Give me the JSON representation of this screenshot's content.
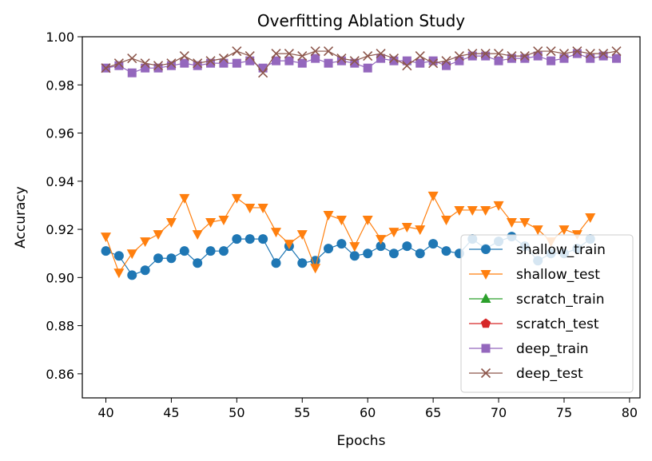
{
  "chart_data": {
    "type": "line",
    "title": "Overfitting Ablation Study",
    "xlabel": "Epochs",
    "ylabel": "Accuracy",
    "xlim": [
      38.2,
      80.8
    ],
    "ylim": [
      0.85,
      1.0
    ],
    "xticks": [
      40,
      45,
      50,
      55,
      60,
      65,
      70,
      75,
      80
    ],
    "yticks": [
      0.86,
      0.88,
      0.9,
      0.92,
      0.94,
      0.96,
      0.98,
      1.0
    ],
    "xtick_labels": [
      "40",
      "45",
      "50",
      "55",
      "60",
      "65",
      "70",
      "75",
      "80"
    ],
    "ytick_labels": [
      "0.86",
      "0.88",
      "0.90",
      "0.92",
      "0.94",
      "0.96",
      "0.98",
      "1.00"
    ],
    "grid": false,
    "legend_position": "lower-right",
    "series": [
      {
        "name": "shallow_train",
        "color": "#1f77b4",
        "marker": "circle",
        "x": [
          40,
          41,
          42,
          43,
          44,
          45,
          46,
          47,
          48,
          49,
          50,
          51,
          52,
          53,
          54,
          55,
          56,
          57,
          58,
          59,
          60,
          61,
          62,
          63,
          64,
          65,
          66,
          67,
          68,
          69,
          70,
          71,
          72,
          73,
          74,
          75,
          76,
          77
        ],
        "y": [
          0.911,
          0.909,
          0.901,
          0.903,
          0.908,
          0.908,
          0.911,
          0.906,
          0.911,
          0.911,
          0.916,
          0.916,
          0.916,
          0.906,
          0.913,
          0.906,
          0.907,
          0.912,
          0.914,
          0.909,
          0.91,
          0.913,
          0.91,
          0.913,
          0.91,
          0.914,
          0.911,
          0.91,
          0.916,
          0.912,
          0.915,
          0.917,
          0.913,
          0.907,
          0.91,
          0.91,
          0.912,
          0.916
        ]
      },
      {
        "name": "shallow_test",
        "color": "#ff7f0e",
        "marker": "triangle-down",
        "x": [
          40,
          41,
          42,
          43,
          44,
          45,
          46,
          47,
          48,
          49,
          50,
          51,
          52,
          53,
          54,
          55,
          56,
          57,
          58,
          59,
          60,
          61,
          62,
          63,
          64,
          65,
          66,
          67,
          68,
          69,
          70,
          71,
          72,
          73,
          74,
          75,
          76,
          77
        ],
        "y": [
          0.917,
          0.902,
          0.91,
          0.915,
          0.918,
          0.923,
          0.933,
          0.918,
          0.923,
          0.924,
          0.933,
          0.929,
          0.929,
          0.919,
          0.914,
          0.918,
          0.904,
          0.926,
          0.924,
          0.913,
          0.924,
          0.916,
          0.919,
          0.921,
          0.92,
          0.934,
          0.924,
          0.928,
          0.928,
          0.928,
          0.93,
          0.923,
          0.923,
          0.92,
          0.915,
          0.92,
          0.918,
          0.925
        ]
      },
      {
        "name": "scratch_train",
        "color": "#2ca02c",
        "marker": "triangle-up",
        "x": [],
        "y": []
      },
      {
        "name": "scratch_test",
        "color": "#d62728",
        "marker": "pentagon",
        "x": [],
        "y": []
      },
      {
        "name": "deep_train",
        "color": "#9467bd",
        "marker": "square",
        "x": [
          40,
          41,
          42,
          43,
          44,
          45,
          46,
          47,
          48,
          49,
          50,
          51,
          52,
          53,
          54,
          55,
          56,
          57,
          58,
          59,
          60,
          61,
          62,
          63,
          64,
          65,
          66,
          67,
          68,
          69,
          70,
          71,
          72,
          73,
          74,
          75,
          76,
          77,
          78,
          79
        ],
        "y": [
          0.987,
          0.988,
          0.985,
          0.987,
          0.987,
          0.988,
          0.989,
          0.988,
          0.989,
          0.989,
          0.989,
          0.99,
          0.987,
          0.99,
          0.99,
          0.989,
          0.991,
          0.989,
          0.99,
          0.989,
          0.987,
          0.991,
          0.99,
          0.99,
          0.989,
          0.99,
          0.988,
          0.99,
          0.992,
          0.992,
          0.99,
          0.991,
          0.991,
          0.992,
          0.99,
          0.991,
          0.993,
          0.991,
          0.992,
          0.991
        ]
      },
      {
        "name": "deep_test",
        "color": "#8c564b",
        "marker": "x",
        "x": [
          40,
          41,
          42,
          43,
          44,
          45,
          46,
          47,
          48,
          49,
          50,
          51,
          52,
          53,
          54,
          55,
          56,
          57,
          58,
          59,
          60,
          61,
          62,
          63,
          64,
          65,
          66,
          67,
          68,
          69,
          70,
          71,
          72,
          73,
          74,
          75,
          76,
          77,
          78,
          79
        ],
        "y": [
          0.987,
          0.989,
          0.991,
          0.989,
          0.988,
          0.989,
          0.992,
          0.989,
          0.99,
          0.991,
          0.994,
          0.992,
          0.985,
          0.993,
          0.993,
          0.992,
          0.994,
          0.994,
          0.991,
          0.99,
          0.992,
          0.993,
          0.991,
          0.988,
          0.992,
          0.989,
          0.99,
          0.992,
          0.993,
          0.993,
          0.993,
          0.992,
          0.992,
          0.994,
          0.994,
          0.993,
          0.994,
          0.993,
          0.993,
          0.994
        ]
      }
    ]
  }
}
